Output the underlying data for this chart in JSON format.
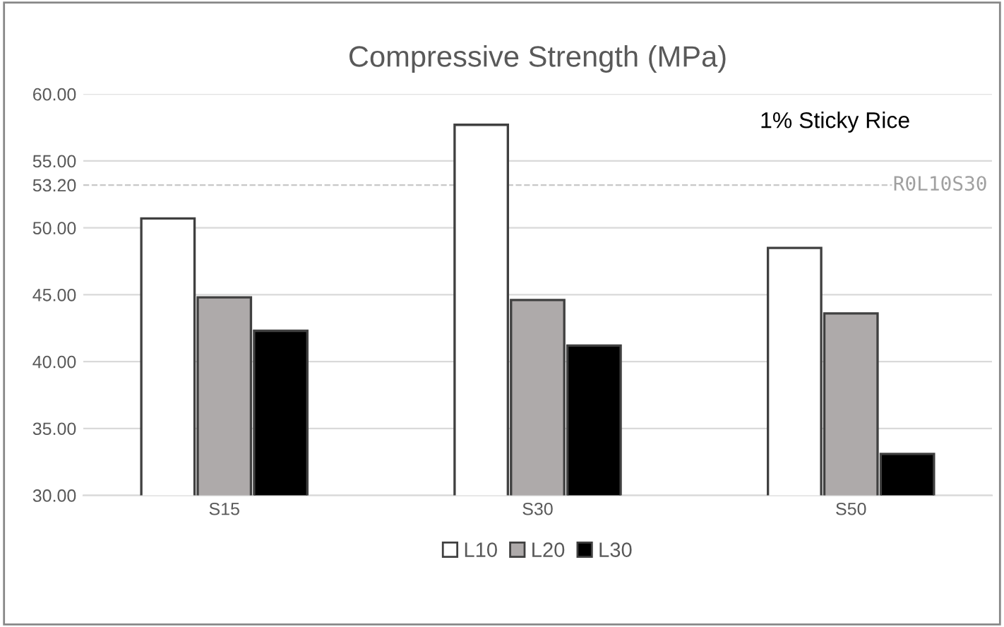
{
  "chart_data": {
    "type": "bar",
    "title": "Compressive Strength (MPa)",
    "categories": [
      "S15",
      "S30",
      "S50"
    ],
    "series": [
      {
        "name": "L10",
        "color": "#ffffff",
        "values": [
          50.7,
          57.7,
          48.5
        ]
      },
      {
        "name": "L20",
        "color": "#aeaaaa",
        "values": [
          44.8,
          44.6,
          43.6
        ]
      },
      {
        "name": "L30",
        "color": "#000000",
        "values": [
          42.3,
          41.2,
          33.1
        ]
      }
    ],
    "ylim": [
      30,
      60
    ],
    "yticks": [
      {
        "value": 30,
        "label": "30.00"
      },
      {
        "value": 35,
        "label": "35.00"
      },
      {
        "value": 40,
        "label": "40.00"
      },
      {
        "value": 45,
        "label": "45.00"
      },
      {
        "value": 50,
        "label": "50.00"
      },
      {
        "value": 53.2,
        "label": "53.20"
      },
      {
        "value": 55,
        "label": "55.00"
      },
      {
        "value": 60,
        "label": "60.00"
      }
    ],
    "ref_lines": [
      {
        "axis": "y",
        "value": 53.2,
        "label": "R0L10S30",
        "color": "#c8c8c8",
        "line_style": "dashed"
      }
    ],
    "annotations": [
      "1% Sticky Rice"
    ],
    "grid": "y",
    "legend": "bottom"
  }
}
